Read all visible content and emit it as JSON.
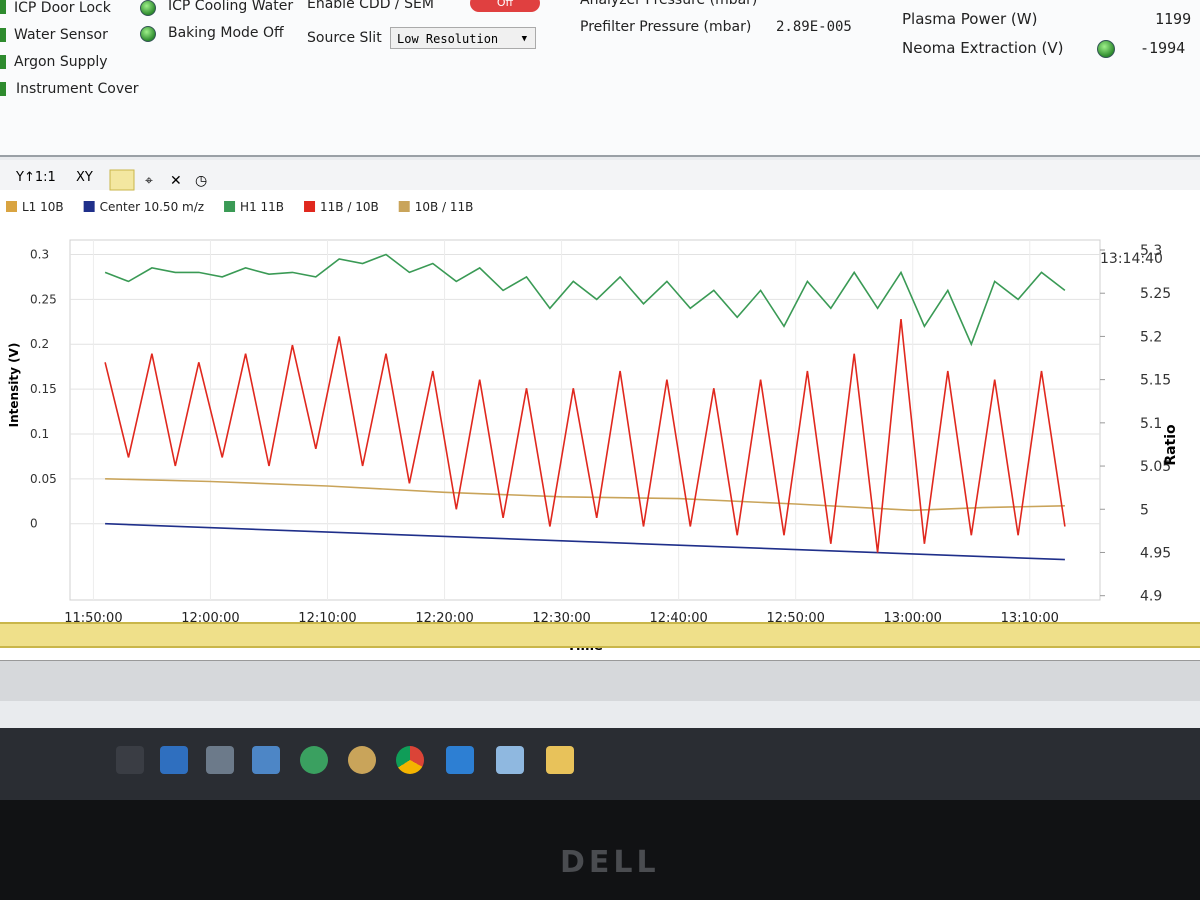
{
  "status": {
    "checks": [
      "ICP Door Lock",
      "Water Sensor",
      "Argon Supply",
      "Instrument Cover"
    ],
    "leds": [
      "ICP Cooling Water",
      "Baking Mode Off"
    ],
    "cdd": {
      "label": "Enable CDD / SEM",
      "value": "Off"
    },
    "slit": {
      "label": "Source Slit",
      "value": "Low Resolution"
    },
    "pressures": [
      {
        "label": "Analyzer Pressure (mbar)"
      },
      {
        "label": "Prefilter Pressure (mbar)",
        "value": "2.89E-005"
      }
    ],
    "power": [
      {
        "label": "Plasma Power (W)",
        "value": "1199"
      },
      {
        "label": "Neoma Extraction (V)",
        "value": "-1994"
      }
    ]
  },
  "toolbar": [
    "Y↑1:1",
    "XY"
  ],
  "chart_data": {
    "type": "line",
    "xlabel": "Time",
    "ylabel": "Intensity (V)",
    "y2label": "Ratio",
    "annotation": "13:14:40",
    "xlim": [
      708,
      796
    ],
    "xticks": [
      {
        "value": 710,
        "label": "11:50:00"
      },
      {
        "value": 720,
        "label": "12:00:00"
      },
      {
        "value": 730,
        "label": "12:10:00"
      },
      {
        "value": 740,
        "label": "12:20:00"
      },
      {
        "value": 750,
        "label": "12:30:00"
      },
      {
        "value": 760,
        "label": "12:40:00"
      },
      {
        "value": 770,
        "label": "12:50:00"
      },
      {
        "value": 780,
        "label": "13:00:00"
      },
      {
        "value": 790,
        "label": "13:10:00"
      }
    ],
    "ylim": [
      -0.085,
      0.305
    ],
    "yticks": [
      0,
      0.05,
      0.1,
      0.15,
      0.2,
      0.25,
      0.3
    ],
    "y2lim": [
      4.895,
      5.3
    ],
    "y2ticks": [
      4.9,
      4.95,
      5,
      5.05,
      5.1,
      5.15,
      5.2,
      5.25,
      5.3
    ],
    "grid": true,
    "series": [
      {
        "name": "L1 10B",
        "color": "#d9a441"
      },
      {
        "name": "Center 10.50 m/z",
        "color": "#1f2f8a",
        "x": [
          711,
          793
        ],
        "values": [
          0,
          -0.04
        ]
      },
      {
        "name": "H1 11B",
        "color": "#3a9a55",
        "x": [
          711,
          713,
          715,
          717,
          719,
          721,
          723,
          725,
          727,
          729,
          731,
          733,
          735,
          737,
          739,
          741,
          743,
          745,
          747,
          749,
          751,
          753,
          755,
          757,
          759,
          761,
          763,
          765,
          767,
          769,
          771,
          773,
          775,
          777,
          779,
          781,
          783,
          785,
          787,
          789,
          791,
          793
        ],
        "values": [
          0.28,
          0.27,
          0.285,
          0.28,
          0.28,
          0.275,
          0.285,
          0.278,
          0.28,
          0.275,
          0.295,
          0.29,
          0.3,
          0.28,
          0.29,
          0.27,
          0.285,
          0.26,
          0.275,
          0.24,
          0.27,
          0.25,
          0.275,
          0.245,
          0.27,
          0.24,
          0.26,
          0.23,
          0.26,
          0.22,
          0.27,
          0.24,
          0.28,
          0.24,
          0.28,
          0.22,
          0.26,
          0.2,
          0.27,
          0.25,
          0.28,
          0.26
        ]
      },
      {
        "name": "11B / 10B",
        "color": "#e0281e",
        "axis": "y2",
        "x": [
          711,
          713,
          715,
          717,
          719,
          721,
          723,
          725,
          727,
          729,
          731,
          733,
          735,
          737,
          739,
          741,
          743,
          745,
          747,
          749,
          751,
          753,
          755,
          757,
          759,
          761,
          763,
          765,
          767,
          769,
          771,
          773,
          775,
          777,
          779,
          781,
          783,
          785,
          787,
          789,
          791,
          793
        ],
        "values": [
          5.17,
          5.06,
          5.18,
          5.05,
          5.17,
          5.06,
          5.18,
          5.05,
          5.19,
          5.07,
          5.2,
          5.05,
          5.18,
          5.03,
          5.16,
          5.0,
          5.15,
          4.99,
          5.14,
          4.98,
          5.14,
          4.99,
          5.16,
          4.98,
          5.15,
          4.98,
          5.14,
          4.97,
          5.15,
          4.97,
          5.16,
          4.96,
          5.18,
          4.95,
          5.22,
          4.96,
          5.16,
          4.97,
          5.15,
          4.97,
          5.16,
          4.98
        ]
      },
      {
        "name": "10B / 11B",
        "color": "#c9a45a",
        "x": [
          711,
          720,
          730,
          740,
          750,
          760,
          770,
          780,
          786,
          793
        ],
        "values": [
          0.05,
          0.047,
          0.042,
          0.035,
          0.03,
          0.028,
          0.022,
          0.015,
          0.018,
          0.02
        ]
      }
    ]
  },
  "monitor": {
    "brand": "DELL"
  }
}
